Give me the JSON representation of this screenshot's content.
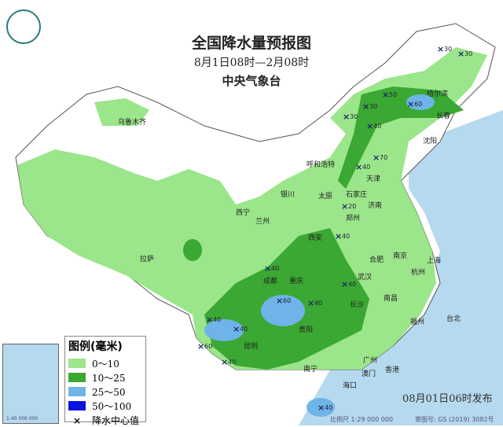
{
  "header": {
    "title": "全国降水量预报图",
    "period": "8月1日08时—2月08时",
    "issuer": "中央气象台"
  },
  "legend": {
    "title": "图例(毫米)",
    "items": [
      {
        "label": "0～10",
        "color": "#9be58a"
      },
      {
        "label": "10～25",
        "color": "#3aa832"
      },
      {
        "label": "25～50",
        "color": "#6fb4e8"
      },
      {
        "label": "50～100",
        "color": "#0a14e0"
      },
      {
        "label": "降水中心值",
        "symbol": "x"
      }
    ]
  },
  "cities": [
    "乌鲁木齐",
    "拉萨",
    "西宁",
    "兰州",
    "银川",
    "呼和浩特",
    "哈尔滨",
    "长春",
    "沈阳",
    "天津",
    "石家庄",
    "太原",
    "济南",
    "郑州",
    "西安",
    "合肥",
    "南京",
    "上海",
    "杭州",
    "武汉",
    "成都",
    "重庆",
    "长沙",
    "南昌",
    "贵阳",
    "昆明",
    "福州",
    "台北",
    "南宁",
    "广州",
    "香港",
    "澳门",
    "海口"
  ],
  "centers": [
    "30",
    "30",
    "30",
    "30",
    "50",
    "60",
    "40",
    "70",
    "40",
    "20",
    "40",
    "40",
    "40",
    "60",
    "40",
    "60",
    "40",
    "40",
    "40",
    "40"
  ],
  "footer": {
    "issued": "08月01日06时发布",
    "scale": "比例尺 1:29 000 000",
    "approval": "审图号: GS (2019) 3082号",
    "inset_scale": "1:40 000 000"
  },
  "colors": {
    "sea": "#b5d9ee",
    "land": "#ffffff",
    "light_rain": "#9be58a",
    "moderate_rain": "#3aa832",
    "heavy_rain": "#6fb4e8"
  }
}
